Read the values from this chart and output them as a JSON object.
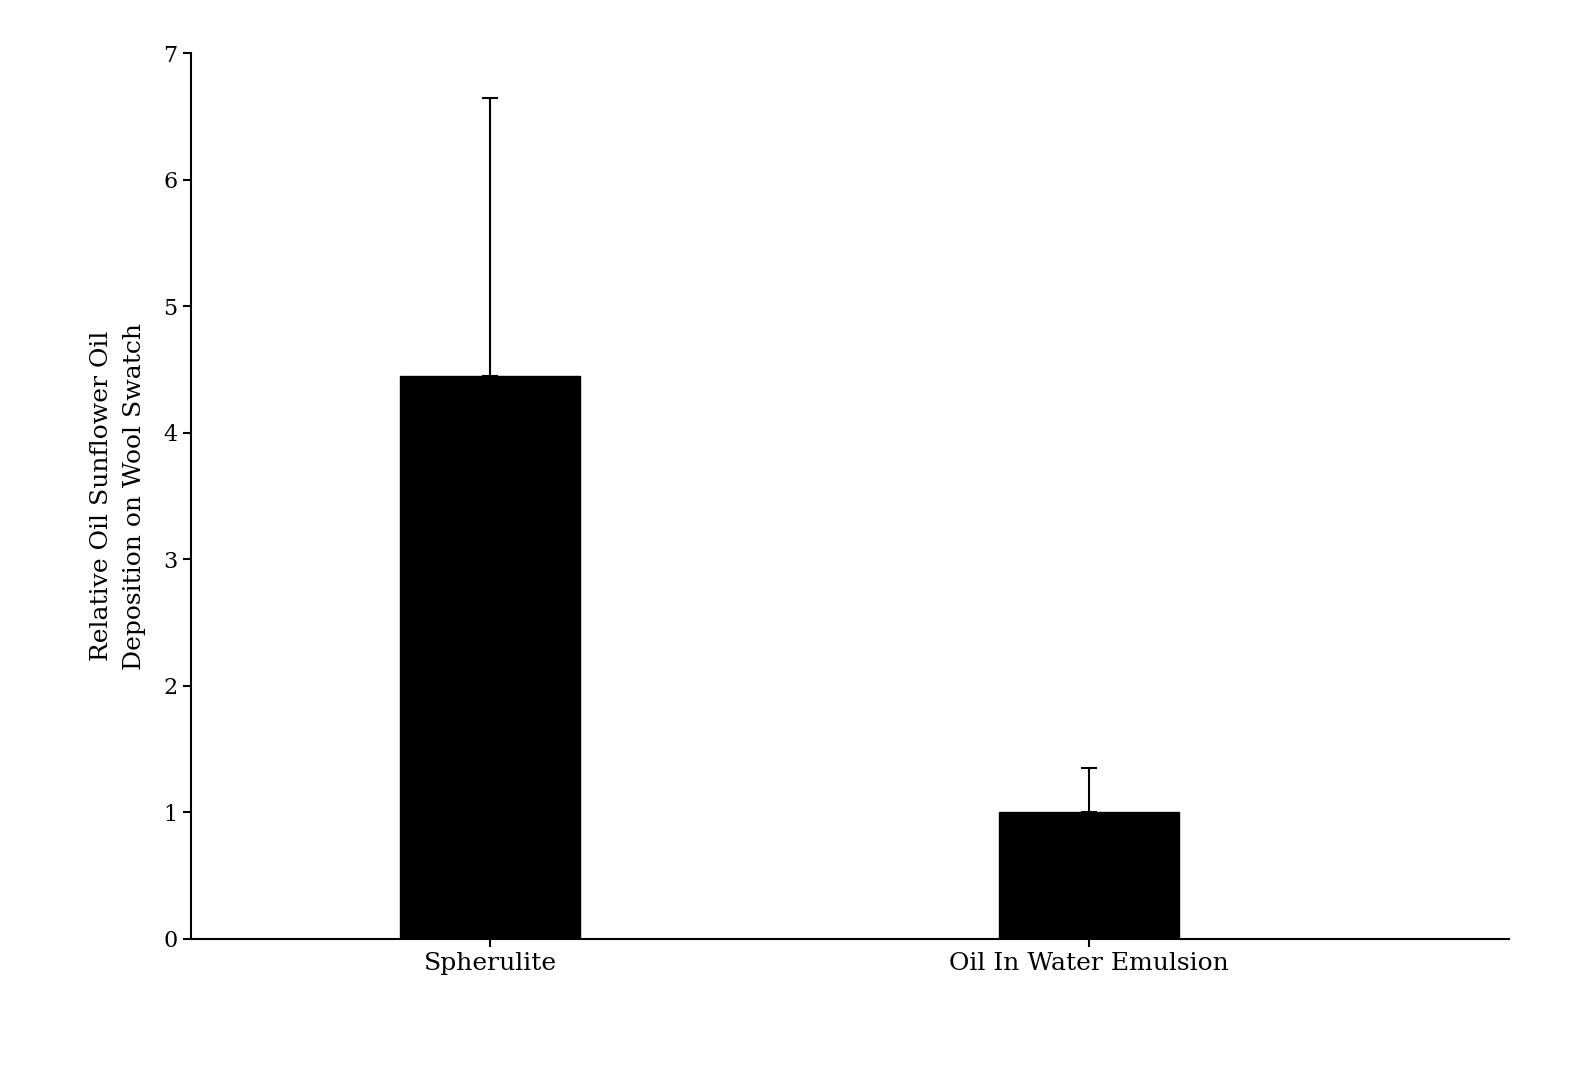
{
  "categories": [
    "Spherulite",
    "Oil In Water Emulsion"
  ],
  "values": [
    4.45,
    1.0
  ],
  "errors": [
    2.2,
    0.35
  ],
  "bar_color": "#000000",
  "bar_width": 0.3,
  "bar_positions": [
    1,
    2
  ],
  "xlim": [
    0.5,
    2.7
  ],
  "ylim": [
    0,
    7
  ],
  "yticks": [
    0,
    1,
    2,
    3,
    4,
    5,
    6,
    7
  ],
  "ylabel_line1": "Relative Oil Sunflower Oil",
  "ylabel_line2": "Deposition on Wool Swatch",
  "ylabel_fontsize": 18,
  "tick_fontsize": 16,
  "xlabel_fontsize": 18,
  "background_color": "#ffffff",
  "error_capsize": 6,
  "error_linewidth": 1.5
}
